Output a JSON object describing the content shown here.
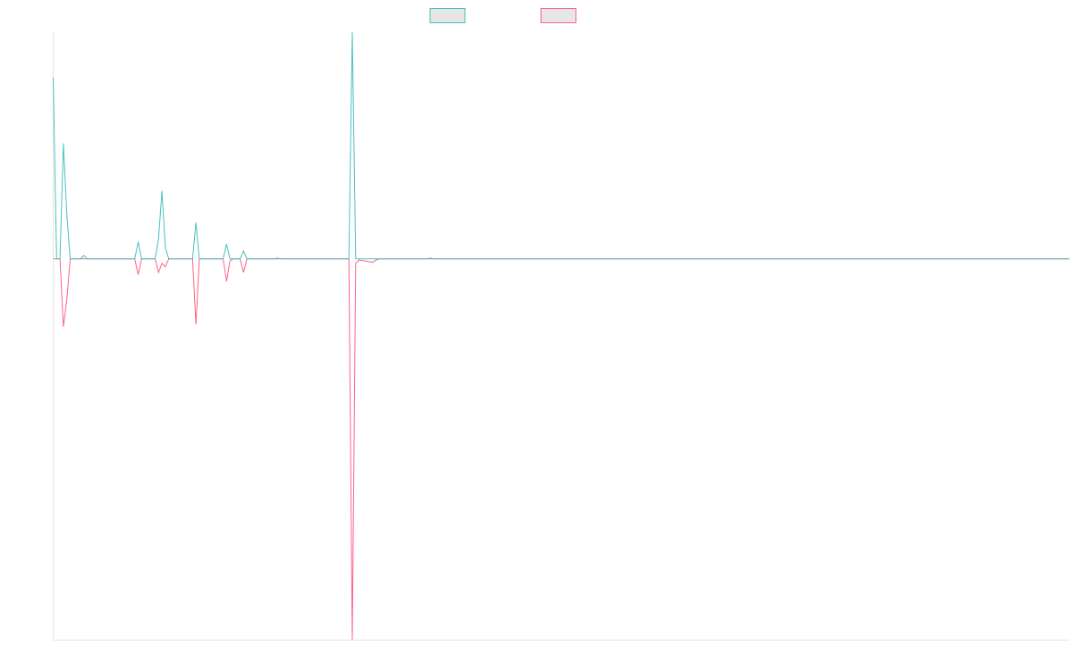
{
  "chart_data": {
    "type": "line",
    "legend_position": "top-center",
    "grid": false,
    "x_count": 300,
    "ylim": [
      -1.68,
      1.0
    ],
    "baseline": 0,
    "series": [
      {
        "color": "#4bc0c0",
        "legend_fill": "#e6e6e6",
        "points": [
          [
            0,
            0.8
          ],
          [
            1,
            0
          ],
          [
            2,
            0
          ],
          [
            3,
            0.51
          ],
          [
            4,
            0.2
          ],
          [
            5,
            0
          ],
          [
            8,
            0
          ],
          [
            9,
            0.015
          ],
          [
            10,
            0
          ],
          [
            24,
            0
          ],
          [
            25,
            0.075
          ],
          [
            26,
            0
          ],
          [
            30,
            0
          ],
          [
            31,
            0.09
          ],
          [
            32,
            0.3
          ],
          [
            33,
            0.05
          ],
          [
            34,
            0
          ],
          [
            41,
            0
          ],
          [
            42,
            0.16
          ],
          [
            43,
            0
          ],
          [
            50,
            0
          ],
          [
            51,
            0.065
          ],
          [
            52,
            0
          ],
          [
            55,
            0
          ],
          [
            56,
            0.035
          ],
          [
            57,
            0
          ],
          [
            65,
            0
          ],
          [
            66,
            0.003
          ],
          [
            67,
            0
          ],
          [
            87,
            0
          ],
          [
            88,
            1.0
          ],
          [
            89,
            0
          ],
          [
            110,
            0
          ],
          [
            111,
            0.003
          ],
          [
            112,
            0
          ],
          [
            299,
            0
          ]
        ]
      },
      {
        "color": "#ff6384",
        "legend_fill": "#e6e6e6",
        "points": [
          [
            0,
            0
          ],
          [
            2,
            0
          ],
          [
            3,
            -0.3
          ],
          [
            4,
            -0.18
          ],
          [
            5,
            0
          ],
          [
            24,
            0
          ],
          [
            25,
            -0.07
          ],
          [
            26,
            0
          ],
          [
            30,
            0
          ],
          [
            31,
            -0.06
          ],
          [
            32,
            -0.02
          ],
          [
            33,
            -0.035
          ],
          [
            34,
            0
          ],
          [
            41,
            0
          ],
          [
            42,
            -0.29
          ],
          [
            43,
            0
          ],
          [
            50,
            0
          ],
          [
            51,
            -0.1
          ],
          [
            52,
            -0.01
          ],
          [
            53,
            0
          ],
          [
            55,
            0
          ],
          [
            56,
            -0.06
          ],
          [
            57,
            0
          ],
          [
            87,
            0
          ],
          [
            88,
            -1.68
          ],
          [
            89,
            -0.02
          ],
          [
            90,
            -0.005
          ],
          [
            94,
            -0.015
          ],
          [
            95,
            -0.005
          ],
          [
            96,
            0
          ],
          [
            299,
            0
          ]
        ]
      }
    ]
  }
}
